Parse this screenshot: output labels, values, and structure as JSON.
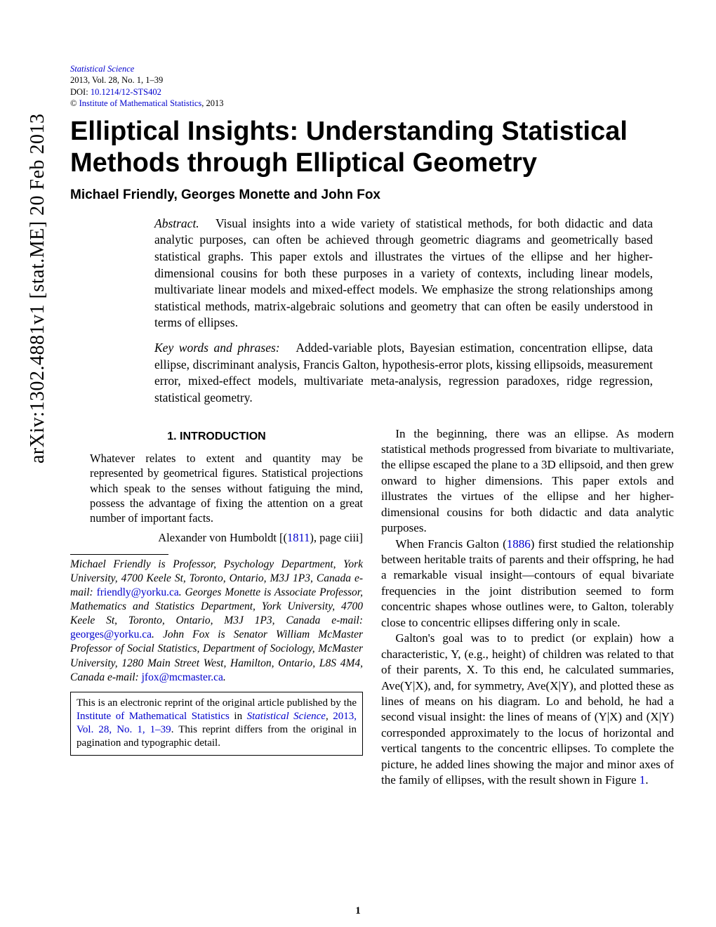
{
  "arxiv": "arXiv:1302.4881v1  [stat.ME]  20 Feb 2013",
  "header": {
    "journal_link": "Statistical Science",
    "issue": "2013, Vol. 28, No. 1, 1–39",
    "doi_label": "DOI: ",
    "doi_link": "10.1214/12-STS402",
    "copyright": "© ",
    "institute_link": "Institute of Mathematical Statistics",
    "copyright_year": ", 2013"
  },
  "title": "Elliptical Insights: Understanding Statistical Methods through Elliptical Geometry",
  "authors": "Michael Friendly, Georges Monette and John Fox",
  "abstract": {
    "label": "Abstract.",
    "body": "Visual insights into a wide variety of statistical methods, for both didactic and data analytic purposes, can often be achieved through geometric diagrams and geometrically based statistical graphs. This paper extols and illustrates the virtues of the ellipse and her higher-dimensional cousins for both these purposes in a variety of contexts, including linear models, multivariate linear models and mixed-effect models. We emphasize the strong relationships among statistical methods, matrix-algebraic solutions and geometry that can often be easily understood in terms of ellipses."
  },
  "keywords": {
    "label": "Key words and phrases:",
    "body": "Added-variable plots, Bayesian estimation, concentration ellipse, data ellipse, discriminant analysis, Francis Galton, hypothesis-error plots, kissing ellipsoids, measurement error, mixed-effect models, multivariate meta-analysis, regression paradoxes, ridge regression, statistical geometry."
  },
  "left_col": {
    "section_heading": "1. INTRODUCTION",
    "quote_lines": [
      "Whatever relates to extent and quantity",
      "may be represented by geometrical figures.",
      "Statistical projections which speak to the",
      "senses without fatiguing the mind, possess",
      "the advantage of fixing the attention on a",
      "great number of important facts."
    ],
    "quote_attrib_pre": "Alexander von Humboldt [(",
    "quote_attrib_year": "1811",
    "quote_attrib_post": "), page ciii]",
    "affil_1": "Michael Friendly is Professor, Psychology Department, York University, 4700 Keele St, Toronto, Ontario, M3J 1P3, Canada e-mail: ",
    "affil_email1": "friendly@yorku.ca",
    "affil_2": ". Georges Monette is Associate Professor, Mathematics and Statistics Department, York University, 4700 Keele St, Toronto, Ontario, M3J 1P3, Canada e-mail: ",
    "affil_email2": "georges@yorku.ca",
    "affil_3": ". John Fox is Senator William McMaster Professor of Social Statistics, Department of Sociology, McMaster University, 1280 Main Street West, Hamilton, Ontario, L8S 4M4, Canada e-mail: ",
    "affil_email3": "jfox@mcmaster.ca",
    "affil_4": ".",
    "reprint_1": "This is an electronic reprint of the original article published by the ",
    "reprint_inst": "Institute of Mathematical Statistics",
    "reprint_2": " in ",
    "reprint_journal": "Statistical Science",
    "reprint_3": ", ",
    "reprint_issue": "2013, Vol. 28, No. 1, 1–39",
    "reprint_4": ". This reprint differs from the original in pagination and typographic detail."
  },
  "right_col": {
    "p1": "In the beginning, there was an ellipse. As modern statistical methods progressed from bivariate to multivariate, the ellipse escaped the plane to a 3D ellipsoid, and then grew onward to higher dimensions. This paper extols and illustrates the virtues of the ellipse and her higher-dimensional cousins for both didactic and data analytic purposes.",
    "p2a": "When Francis Galton (",
    "p2_year": "1886",
    "p2b": ") first studied the relationship between heritable traits of parents and their offspring, he had a remarkable visual insight—contours of equal bivariate frequencies in the joint distribution seemed to form concentric shapes whose outlines were, to Galton, tolerably close to concentric ellipses differing only in scale.",
    "p3a": "Galton's goal was to to predict (or explain) how a characteristic, Y, (e.g., height) of children was related to that of their parents, X. To this end, he calculated summaries, Ave(Y|X), and, for symmetry, Ave(X|Y), and plotted these as lines of means on his diagram. Lo and behold, he had a second visual insight: the lines of means of (Y|X) and (X|Y) corresponded approximately to the locus of horizontal and vertical tangents to the concentric ellipses. To complete the picture, he added lines showing the major and minor axes of the family of ellipses, with the result shown in Figure ",
    "p3_fig": "1",
    "p3b": "."
  },
  "pagenum": "1",
  "colors": {
    "link": "#0000cc",
    "text": "#000000",
    "bg": "#ffffff"
  },
  "fonts": {
    "body_family": "Times New Roman",
    "heading_family": "Arial",
    "title_size_pt": 29,
    "body_size_pt": 13,
    "abstract_size_pt": 13
  }
}
